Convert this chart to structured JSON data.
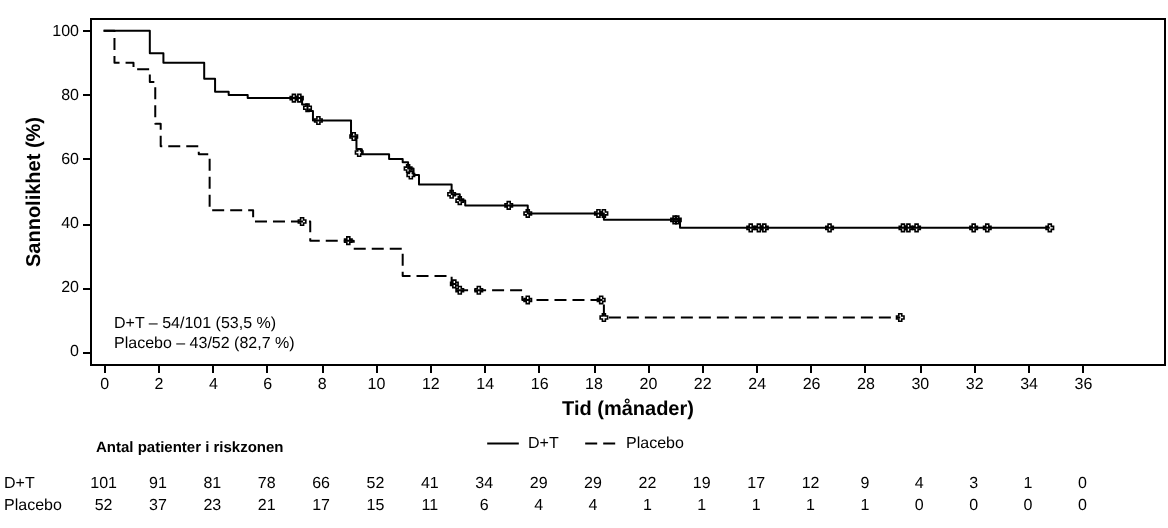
{
  "chart_data": {
    "type": "step",
    "xlabel": "Tid (månader)",
    "ylabel": "Sannolikhet (%)",
    "xlim": [
      -0.5,
      39
    ],
    "xticks": [
      0,
      2,
      4,
      6,
      8,
      10,
      12,
      14,
      16,
      18,
      20,
      22,
      24,
      26,
      28,
      30,
      32,
      34,
      36
    ],
    "ylim": [
      -4,
      104
    ],
    "yticks": [
      0,
      20,
      40,
      60,
      80,
      100
    ],
    "grid": false,
    "legend": "bottom",
    "series": [
      {
        "name": "D+T",
        "color": "#000000",
        "line_style": "solid",
        "x": [
          0,
          1.7,
          2.2,
          3.7,
          4.1,
          4.6,
          5.3,
          7.3,
          7.5,
          7.7,
          9.1,
          9.3,
          9.5,
          10.5,
          11.0,
          11.2,
          11.4,
          11.6,
          12.8,
          13.1,
          13.3,
          15.6,
          18.4,
          21.2,
          34.8
        ],
        "values": [
          100,
          93,
          90,
          85,
          81,
          80,
          79,
          77,
          75,
          72,
          67,
          63,
          61.5,
          60,
          59,
          57,
          55,
          52,
          49,
          47,
          45.5,
          43,
          41,
          38.5,
          38.5
        ]
      },
      {
        "name": "Placebo",
        "color": "#000000",
        "line_style": "dashed",
        "x": [
          0,
          0.4,
          1.1,
          1.7,
          1.9,
          2.1,
          3.5,
          3.9,
          5.5,
          7.6,
          9.2,
          11.0,
          12.8,
          13.0,
          15.4,
          18.4,
          29.3
        ],
        "values": [
          100,
          90,
          88,
          84,
          71,
          64,
          61.5,
          44,
          40.5,
          34.5,
          32,
          23.5,
          21,
          19,
          16,
          10.5,
          10.5
        ]
      },
      {
        "type": "scatter",
        "color": "#000000",
        "marker": "cross",
        "x": [
          7.0,
          7.2,
          7.5,
          7.9,
          9.2,
          9.4,
          11.2,
          11.3,
          12.8,
          13.1,
          14.9,
          15.6,
          18.2,
          18.4,
          21.0,
          21.1,
          23.8,
          24.1,
          24.3,
          26.7,
          29.4,
          29.6,
          29.9,
          32.0,
          32.5,
          34.8
        ],
        "values": [
          79,
          79,
          76,
          72,
          67,
          62,
          57,
          55,
          49,
          47,
          45.5,
          43,
          43,
          43,
          41,
          41,
          38.5,
          38.5,
          38.5,
          38.5,
          38.5,
          38.5,
          38.5,
          38.5,
          38.5,
          38.5
        ]
      },
      {
        "type": "scatter",
        "color": "#000000",
        "marker": "cross",
        "x": [
          7.3,
          9.0,
          12.9,
          13.1,
          13.8,
          15.6,
          18.3,
          18.4,
          29.3
        ],
        "values": [
          40.5,
          34.5,
          21,
          19,
          19,
          16,
          16,
          10.5,
          10.5
        ]
      }
    ],
    "annotations": [
      "D+T – 54/101 (53,5 %)",
      "Placebo – 43/52 (82,7 %)",
      "Antal patienter i riskzonen",
      "D+T 101 91 81 78 66 52 41 34 29 29 22 19 17 12 9 4 3 1 0",
      "Placebo 52 37 23 21 17 15 11 6 4 4 1 1 1 1 1 0 0 0 0"
    ]
  }
}
